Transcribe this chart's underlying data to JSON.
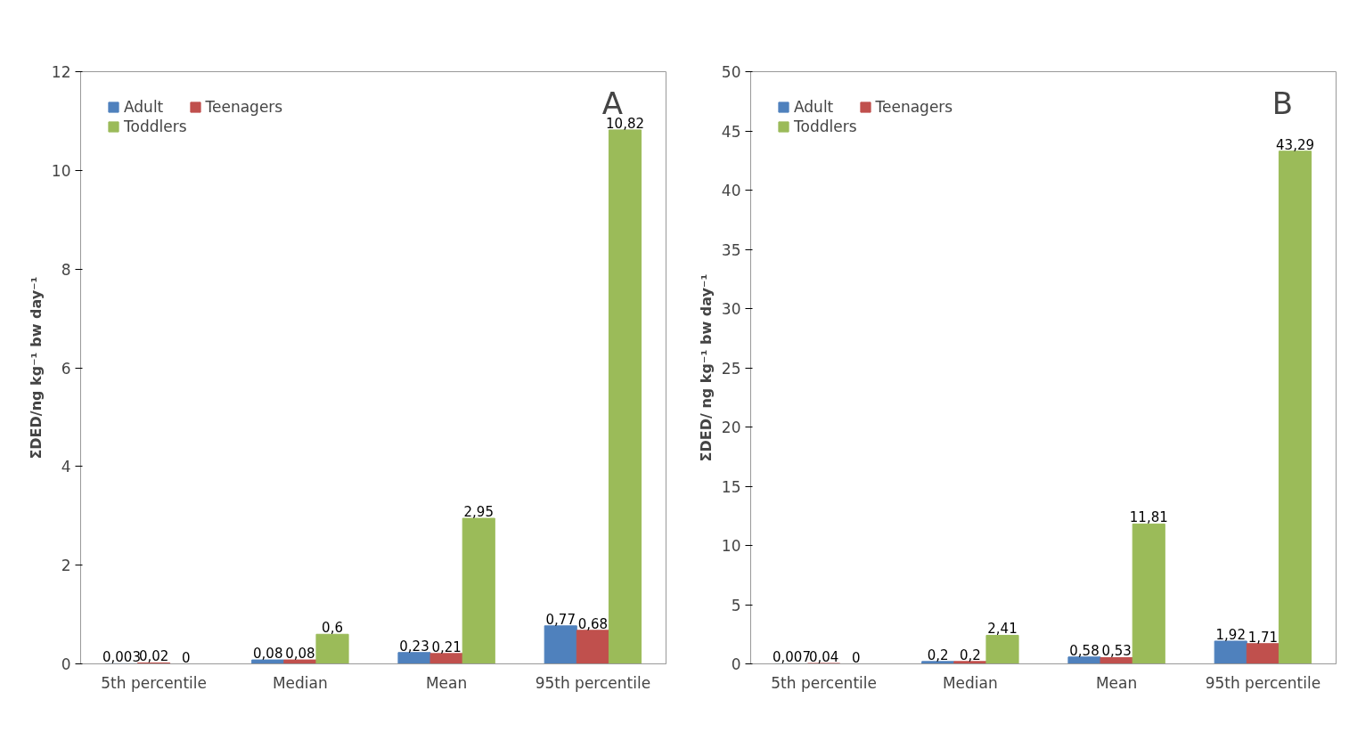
{
  "chart_data": [
    {
      "type": "bar",
      "categories": [
        "5th percentile",
        "Median",
        "Mean",
        "95th percentile"
      ],
      "ylabel": "ΣDED/ng kg⁻¹ bw day⁻¹",
      "annotations": [
        "A"
      ],
      "ylim": [
        0,
        12
      ],
      "yticks": [
        0,
        2,
        4,
        6,
        8,
        10,
        12
      ],
      "grid": false,
      "legend": "top left",
      "series": [
        {
          "name": "Adult",
          "color": "#4f81bd",
          "values": [
            0.003,
            0.08,
            0.23,
            0.77
          ],
          "value_labels": [
            "0,003",
            "0,08",
            "0,23",
            "0,77"
          ]
        },
        {
          "name": "Teenagers",
          "color": "#c0504d",
          "values": [
            0.02,
            0.08,
            0.21,
            0.68
          ],
          "value_labels": [
            "0,02",
            "0,08",
            "0,21",
            "0,68"
          ]
        },
        {
          "name": "Toddlers",
          "color": "#9bbb59",
          "values": [
            0,
            0.6,
            2.95,
            10.82
          ],
          "value_labels": [
            "0",
            "0,6",
            "2,95",
            "10,82"
          ]
        }
      ]
    },
    {
      "type": "bar",
      "categories": [
        "5th percentile",
        "Median",
        "Mean",
        "95th percentile"
      ],
      "ylabel": "ΣDED/ ng kg⁻¹ bw day⁻¹",
      "annotations": [
        "B"
      ],
      "ylim": [
        0,
        50
      ],
      "yticks": [
        0,
        5,
        10,
        15,
        20,
        25,
        30,
        35,
        40,
        45,
        50
      ],
      "grid": false,
      "legend": "top left",
      "series": [
        {
          "name": "Adult",
          "color": "#4f81bd",
          "values": [
            0.007,
            0.2,
            0.58,
            1.92
          ],
          "value_labels": [
            "0,007",
            "0,2",
            "0,58",
            "1,92"
          ]
        },
        {
          "name": "Teenagers",
          "color": "#c0504d",
          "values": [
            0.04,
            0.2,
            0.53,
            1.71
          ],
          "value_labels": [
            "0,04",
            "0,2",
            "0,53",
            "1,71"
          ]
        },
        {
          "name": "Toddlers",
          "color": "#9bbb59",
          "values": [
            0,
            2.41,
            11.81,
            43.29
          ],
          "value_labels": [
            "0",
            "2,41",
            "11,81",
            "43,29"
          ]
        }
      ]
    }
  ]
}
